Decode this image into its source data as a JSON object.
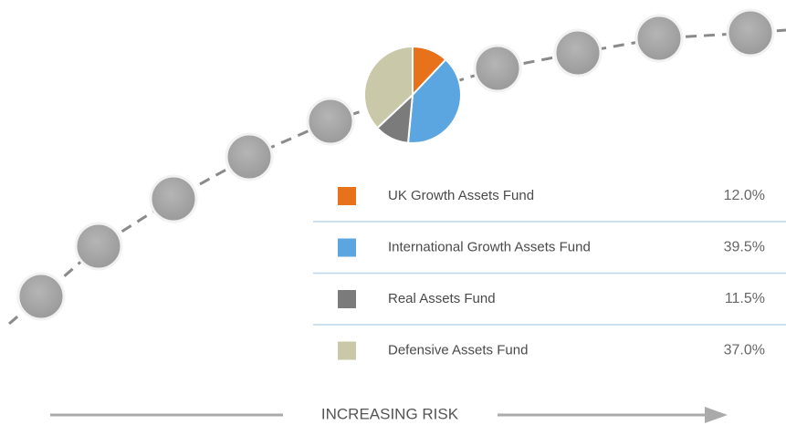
{
  "chart_data": {
    "type": "pie",
    "categories": [
      "UK Growth Assets Fund",
      "International Growth Assets Fund",
      "Real Assets Fund",
      "Defensive Assets Fund"
    ],
    "values": [
      12.0,
      39.5,
      11.5,
      37.0
    ],
    "value_labels": [
      "12.0%",
      "39.5%",
      "11.5%",
      "37.0%"
    ],
    "colors": [
      "#e8711c",
      "#5ba6e0",
      "#7b7b7b",
      "#c9c8a9"
    ],
    "annotation": "INCREASING RISK"
  }
}
